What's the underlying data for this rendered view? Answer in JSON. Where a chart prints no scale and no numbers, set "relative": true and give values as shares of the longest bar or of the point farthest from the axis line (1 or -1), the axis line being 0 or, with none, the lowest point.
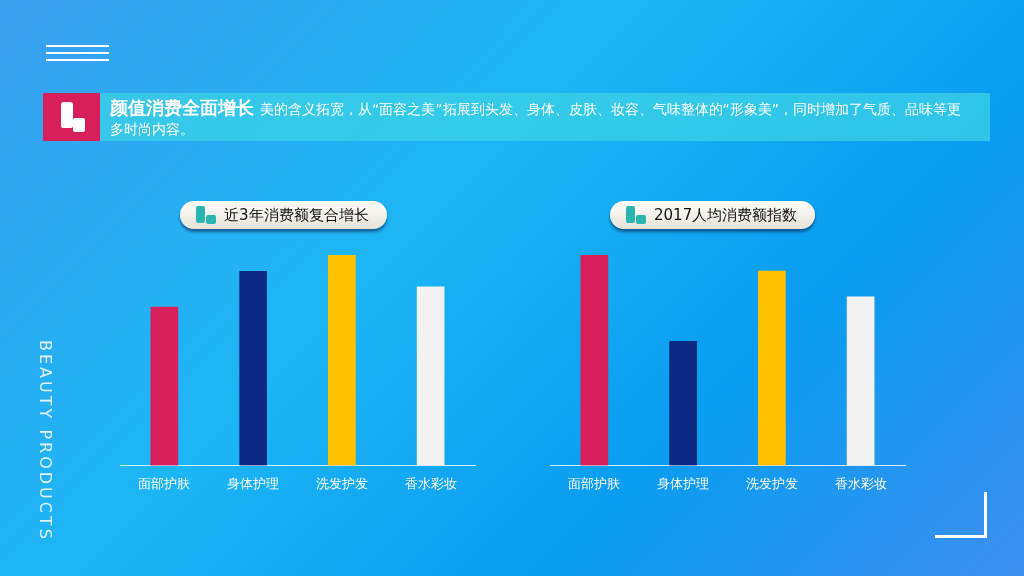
{
  "chart_data": [
    {
      "type": "bar",
      "title": "近3年消费额复合增长",
      "categories": [
        "面部护肤",
        "身体护理",
        "洗发护发",
        "香水彩妆"
      ],
      "values": [
        0.753,
        0.922,
        1,
        0.849
      ],
      "colors": [
        "#d81e5b",
        "#0a2a82",
        "#ffc000",
        "#f2f2f2"
      ],
      "relative": true,
      "annotations": [
        "颜值消费全面增长",
        "美的含义拓宽，从“面容之美”拓展到头发、身体、皮肤、妆容、气味整体的“形象美”，同时增加了气质、品味等更多时尚内容。",
        "BEAUTY PRODUCTS"
      ]
    },
    {
      "type": "bar",
      "title": "2017人均消费额指数",
      "categories": [
        "面部护肤",
        "身体护理",
        "洗发护发",
        "香水彩妆"
      ],
      "values": [
        1,
        0.59,
        0.923,
        0.801
      ],
      "colors": [
        "#d81e5b",
        "#0a2a82",
        "#ffc000",
        "#f2f2f2"
      ],
      "relative": true
    }
  ]
}
